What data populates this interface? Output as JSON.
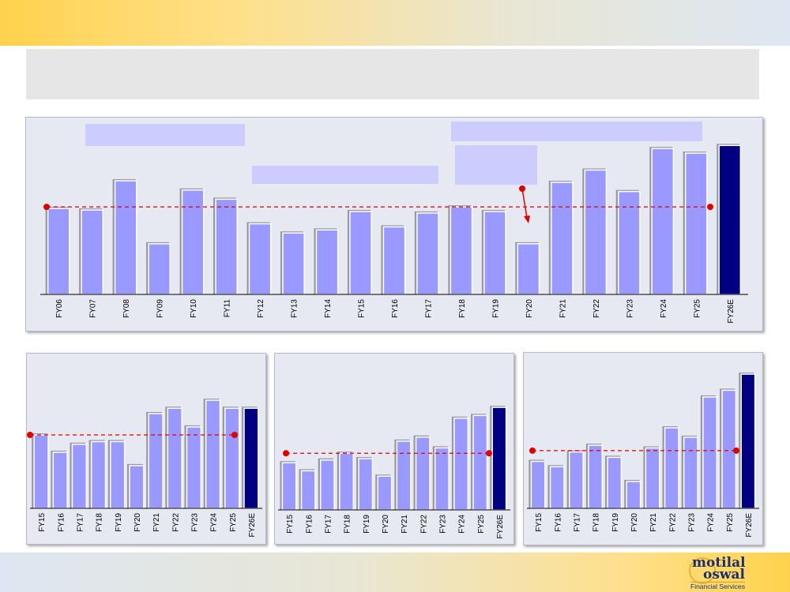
{
  "logo": {
    "line1": "motilal",
    "line2": "oswal",
    "tagline": "Financial Services"
  },
  "chart_data": [
    {
      "type": "bar",
      "categories": [
        "FY06",
        "FY07",
        "FY08",
        "FY09",
        "FY10",
        "FY11",
        "FY12",
        "FY13",
        "FY14",
        "FY15",
        "FY16",
        "FY17",
        "FY18",
        "FY19",
        "FY20",
        "FY21",
        "FY22",
        "FY23",
        "FY24",
        "FY25",
        "FY26E"
      ],
      "values": [
        56,
        55,
        74,
        33,
        68,
        62,
        46,
        40,
        42,
        54,
        44,
        53,
        57,
        54,
        33,
        73,
        81,
        67,
        95,
        92,
        97
      ],
      "highlight_last": true,
      "average_line": 57,
      "ylim": [
        0,
        110
      ],
      "title": "",
      "xlabel": "",
      "ylabel": ""
    },
    {
      "type": "bar",
      "categories": [
        "FY15",
        "FY16",
        "FY17",
        "FY18",
        "FY19",
        "FY20",
        "FY21",
        "FY22",
        "FY23",
        "FY24",
        "FY25",
        "FY26E"
      ],
      "values": [
        55,
        42,
        48,
        50,
        50,
        32,
        71,
        75,
        61,
        81,
        75,
        75
      ],
      "highlight_last": true,
      "average_line": 55,
      "ylim": [
        0,
        110
      ],
      "title": "",
      "xlabel": "",
      "ylabel": ""
    },
    {
      "type": "bar",
      "categories": [
        "FY15",
        "FY16",
        "FY17",
        "FY18",
        "FY19",
        "FY20",
        "FY21",
        "FY22",
        "FY23",
        "FY24",
        "FY25",
        "FY26E"
      ],
      "values": [
        35,
        29,
        37,
        42,
        38,
        25,
        51,
        54,
        46,
        68,
        70,
        76
      ],
      "highlight_last": true,
      "average_line": 42,
      "ylim": [
        0,
        110
      ],
      "title": "",
      "xlabel": "",
      "ylabel": ""
    },
    {
      "type": "bar",
      "categories": [
        "FY15",
        "FY16",
        "FY17",
        "FY18",
        "FY19",
        "FY20",
        "FY21",
        "FY22",
        "FY23",
        "FY24",
        "FY25",
        "FY26E"
      ],
      "values": [
        35,
        31,
        42,
        47,
        38,
        20,
        45,
        60,
        53,
        83,
        88,
        100
      ],
      "highlight_last": true,
      "average_line": 43,
      "ylim": [
        0,
        110
      ],
      "title": "",
      "xlabel": "",
      "ylabel": ""
    }
  ],
  "colors": {
    "bar": "#9999ff",
    "highlight": "#000080",
    "average": "#e00000"
  }
}
